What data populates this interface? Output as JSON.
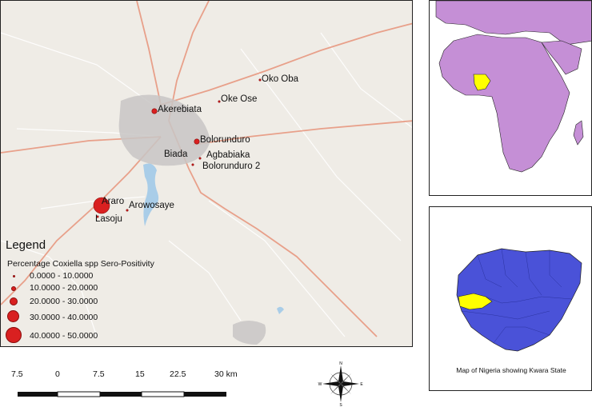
{
  "main_map": {
    "sites": [
      {
        "name": "Oko Oba",
        "pct": 0
      },
      {
        "name": "Oke Ose",
        "pct": 0
      },
      {
        "name": "Akerebiata",
        "pct": 10
      },
      {
        "name": "Bolorunduro",
        "pct": 10
      },
      {
        "name": "Biada",
        "pct": 0
      },
      {
        "name": "Agbabiaka",
        "pct": 0
      },
      {
        "name": "Bolorunduro 2",
        "pct": 0
      },
      {
        "name": "Araro",
        "pct": 50
      },
      {
        "name": "Arowosaye",
        "pct": 0
      },
      {
        "name": "Lasoju",
        "pct": 0
      }
    ]
  },
  "legend": {
    "title": "Legend",
    "subtitle": "Percentage Coxiella spp Sero-Positivity",
    "classes": [
      "0.0000 - 10.0000",
      "10.0000 - 20.0000",
      "20.0000 - 30.0000",
      "30.0000 - 40.0000",
      "40.0000 - 50.0000"
    ]
  },
  "scale_bar": {
    "ticks": [
      "7.5",
      "0",
      "7.5",
      "15",
      "22.5",
      "30 km"
    ]
  },
  "compass": {
    "n": "N",
    "s": "S",
    "e": "E",
    "w": "W"
  },
  "inset_nigeria": {
    "caption": "Map of Nigeria showing Kwara State"
  },
  "colors": {
    "site_marker": "#d92020",
    "africa_fill": "#c58fd6",
    "nigeria_highlight": "#ffff00",
    "nigeria_fill": "#4a52d8",
    "road": "#e8a08a",
    "urban": "#c8c6c4",
    "water": "#a9cde8"
  }
}
